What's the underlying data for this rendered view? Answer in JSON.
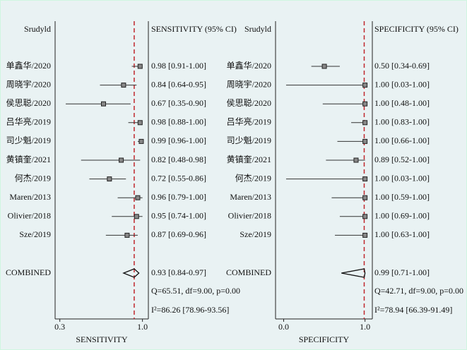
{
  "chart_data": [
    {
      "type": "forest",
      "study_header": "Srudyld",
      "ci_header": "SENSITIVITY (95% CI)",
      "xlabel": "SENSITIVITY",
      "categories": [
        "单鑫华/2020",
        "周晓宇/2020",
        "侯思聪/2020",
        "吕华亮/2019",
        "司少魁/2019",
        "黄镇奎/2021",
        "何杰/2019",
        "Maren/2013",
        "Olivier/2018",
        "Sze/2019"
      ],
      "values": [
        0.98,
        0.84,
        0.67,
        0.98,
        0.99,
        0.82,
        0.72,
        0.96,
        0.95,
        0.87
      ],
      "lower": [
        0.91,
        0.64,
        0.35,
        0.88,
        0.96,
        0.48,
        0.55,
        0.79,
        0.74,
        0.69
      ],
      "upper": [
        1.0,
        0.95,
        0.9,
        1.0,
        1.0,
        0.98,
        0.86,
        1.0,
        1.0,
        0.96
      ],
      "value_labels": [
        "0.98 [0.91-1.00]",
        "0.84 [0.64-0.95]",
        "0.67 [0.35-0.90]",
        "0.98 [0.88-1.00]",
        "0.99 [0.96-1.00]",
        "0.82 [0.48-0.98]",
        "0.72 [0.55-0.86]",
        "0.96 [0.79-1.00]",
        "0.95 [0.74-1.00]",
        "0.87 [0.69-0.96]"
      ],
      "combined": {
        "label": "COMBINED",
        "value": 0.93,
        "lower": 0.84,
        "upper": 0.97,
        "value_label": "0.93 [0.84-0.97]"
      },
      "stats": [
        "Q=65.51, df=9.00, p=0.00",
        "I²=86.26 [78.96-93.56]"
      ],
      "xlim": [
        0.26,
        1.05
      ],
      "xticks": [
        0.3,
        {
          "value": 1,
          "label": "1.0"
        }
      ],
      "reference_color": "#c0272d"
    },
    {
      "type": "forest",
      "study_header": "Srudyld",
      "ci_header": "SPECIFICITY (95% CI)",
      "xlabel": "SPECIFICITY",
      "categories": [
        "单鑫华/2020",
        "周晓宇/2020",
        "侯思聪/2020",
        "吕华亮/2019",
        "司少魁/2019",
        "黄镇奎/2021",
        "何杰/2019",
        "Maren/2013",
        "Olivier/2018",
        "Sze/2019"
      ],
      "values": [
        0.5,
        1.0,
        1.0,
        1.0,
        1.0,
        0.89,
        1.0,
        1.0,
        1.0,
        1.0
      ],
      "lower": [
        0.34,
        0.03,
        0.48,
        0.83,
        0.66,
        0.52,
        0.03,
        0.59,
        0.69,
        0.63
      ],
      "upper": [
        0.69,
        1.0,
        1.0,
        1.0,
        1.0,
        1.0,
        1.0,
        1.0,
        1.0,
        1.0
      ],
      "value_labels": [
        "0.50 [0.34-0.69]",
        "1.00 [0.03-1.00]",
        "1.00 [0.48-1.00]",
        "1.00 [0.83-1.00]",
        "1.00 [0.66-1.00]",
        "0.89 [0.52-1.00]",
        "1.00 [0.03-1.00]",
        "1.00 [0.59-1.00]",
        "1.00 [0.69-1.00]",
        "1.00 [0.63-1.00]"
      ],
      "combined": {
        "label": "COMBINED",
        "value": 0.99,
        "lower": 0.71,
        "upper": 1.0,
        "value_label": "0.99 [0.71-1.00]"
      },
      "stats": [
        "Q=42.71, df=9.00, p=0.00",
        "I²=78.94 [66.39-91.49]"
      ],
      "xlim": [
        -0.1,
        1.09
      ],
      "xticks": [
        {
          "value": 0,
          "label": "0.0"
        },
        {
          "value": 1,
          "label": "1.0"
        }
      ],
      "reference_color": "#c0272d"
    }
  ]
}
